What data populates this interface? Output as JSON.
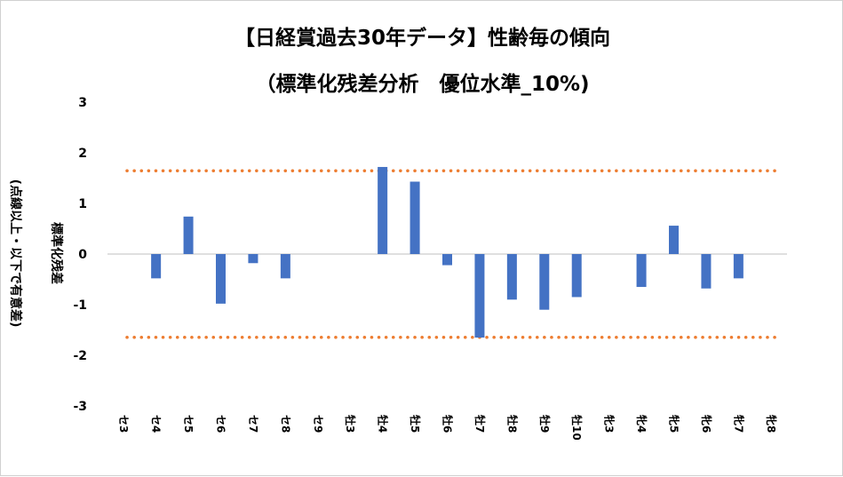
{
  "chart_data": {
    "type": "bar",
    "title_line1": "【日経賞過去30年データ】性齢毎の傾向",
    "title_line2": "（標準化残差分析　優位水準_10%)",
    "ylabel_line1": "標準化残差",
    "ylabel_line2": "(点線以上・以下で有意差)",
    "xlabel": "",
    "ylim": [
      -3,
      3
    ],
    "yticks": [
      3,
      2,
      1,
      0,
      -1,
      -2,
      -3
    ],
    "categories": [
      "セ3",
      "セ4",
      "セ5",
      "セ6",
      "セ7",
      "セ8",
      "セ9",
      "牡3",
      "牡4",
      "牡5",
      "牡6",
      "牡7",
      "牡8",
      "牡9",
      "牡10",
      "牝3",
      "牝4",
      "牝5",
      "牝6",
      "牝7",
      "牝8"
    ],
    "values": [
      0,
      -0.48,
      0.74,
      -0.98,
      -0.18,
      -0.48,
      0,
      0,
      1.72,
      1.43,
      -0.22,
      -1.65,
      -0.9,
      -1.1,
      -0.85,
      0,
      -0.65,
      0.56,
      -0.68,
      -0.48,
      0
    ],
    "thresholds": [
      1.645,
      -1.645
    ],
    "colors": {
      "bar": "#4472C4",
      "threshold": "#ED7D31"
    },
    "grid": false,
    "legend": "none"
  }
}
